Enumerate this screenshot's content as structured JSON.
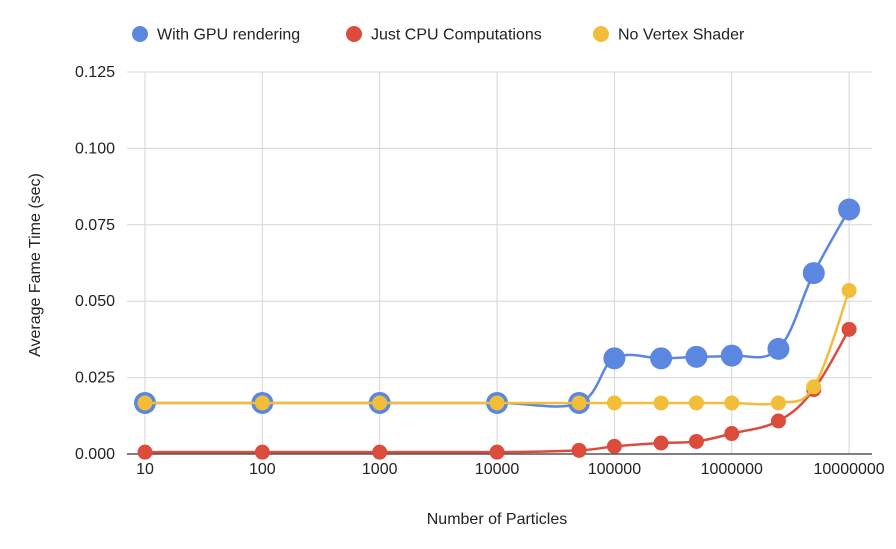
{
  "chart_data": {
    "type": "line",
    "title": "",
    "xlabel": "Number of Particles",
    "ylabel": "Average Fame Time (sec)",
    "x": [
      10,
      100,
      1000,
      10000,
      50000,
      100000,
      250000,
      500000,
      1000000,
      2500000,
      5000000,
      10000000
    ],
    "x_ticks": [
      "10",
      "100",
      "1000",
      "10000",
      "100000",
      "1000000",
      "10000000"
    ],
    "x_scale": "log",
    "y_ticks": [
      "0.000",
      "0.025",
      "0.050",
      "0.075",
      "0.100",
      "0.125"
    ],
    "ylim": [
      0,
      0.125
    ],
    "grid": true,
    "legend_position": "top",
    "series": [
      {
        "name": "With GPU rendering",
        "color": "#5b87e0",
        "values": [
          0.0167,
          0.0167,
          0.0167,
          0.0167,
          0.0167,
          0.0313,
          0.0313,
          0.0318,
          0.0322,
          0.0344,
          0.0592,
          0.08
        ]
      },
      {
        "name": "Just CPU Computations",
        "color": "#db4c3c",
        "values": [
          0.0006,
          0.0006,
          0.0006,
          0.0006,
          0.0012,
          0.0025,
          0.0036,
          0.0041,
          0.0067,
          0.0108,
          0.0211,
          0.0408
        ]
      },
      {
        "name": "No Vertex Shader",
        "color": "#f2be3a",
        "values": [
          0.0167,
          0.0167,
          0.0167,
          0.0167,
          0.0167,
          0.0167,
          0.0167,
          0.0167,
          0.0167,
          0.0167,
          0.022,
          0.0535
        ]
      }
    ]
  }
}
